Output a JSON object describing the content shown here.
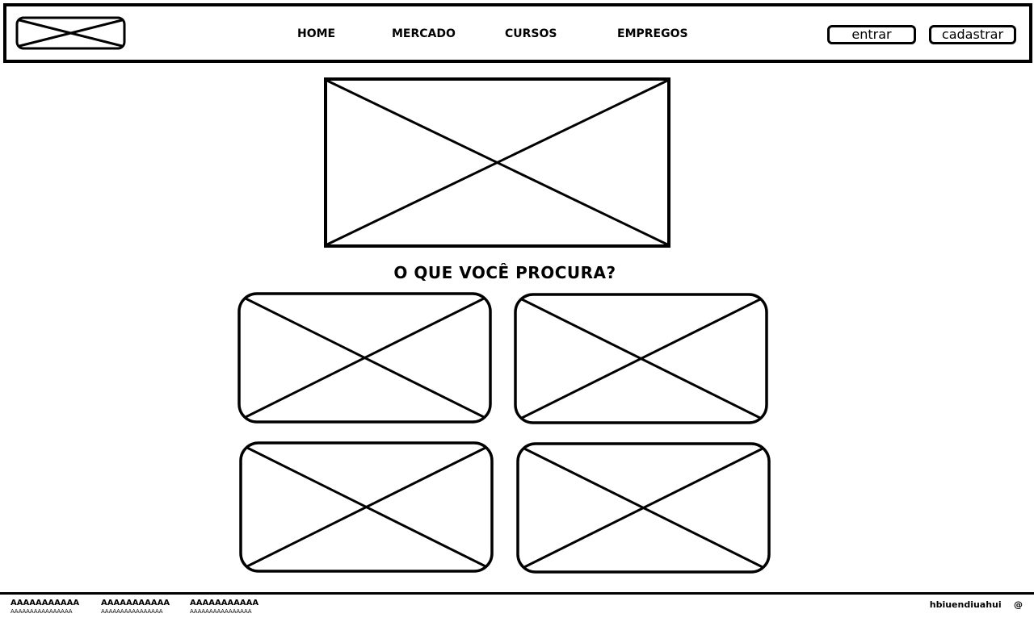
{
  "header": {
    "logo_icon": "image-placeholder-icon",
    "nav": [
      "HOME",
      "MERCADO",
      "CURSOS",
      "EMPREGOS"
    ],
    "login_label": "entrar",
    "signup_label": "cadastrar"
  },
  "hero": {
    "image_icon": "image-placeholder-icon"
  },
  "main": {
    "heading": "O QUE VOCÊ PROCURA?",
    "cards_icon": "image-placeholder-icon"
  },
  "footer": {
    "columns": [
      {
        "title": "AAAAAAAAAAA",
        "text": "AAAAAAAAAAAAAAAA"
      },
      {
        "title": "AAAAAAAAAAA",
        "text": "AAAAAAAAAAAAAAAA"
      },
      {
        "title": "AAAAAAAAAAA",
        "text": "AAAAAAAAAAAAAAAA"
      }
    ],
    "right_text": "hbiuendiuahui",
    "at_symbol": "@"
  }
}
